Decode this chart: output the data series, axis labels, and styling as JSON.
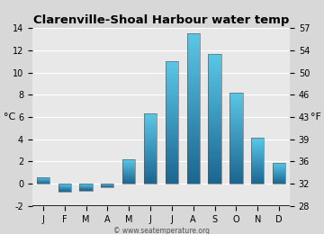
{
  "title": "Clarenville-Shoal Harbour water temp",
  "months": [
    "J",
    "F",
    "M",
    "A",
    "M",
    "J",
    "J",
    "A",
    "S",
    "O",
    "N",
    "D"
  ],
  "values_c": [
    0.6,
    -0.7,
    -0.6,
    -0.3,
    2.2,
    6.3,
    11.0,
    13.5,
    11.7,
    8.2,
    4.1,
    1.9
  ],
  "ylabel_left": "°C",
  "ylabel_right": "°F",
  "ylim_c": [
    -2,
    14
  ],
  "yticks_c": [
    -2,
    0,
    2,
    4,
    6,
    8,
    10,
    12,
    14
  ],
  "yticks_f": [
    28,
    32,
    36,
    39,
    43,
    46,
    50,
    54,
    57
  ],
  "bg_color": "#d8d8d8",
  "plot_bg": "#e8e8e8",
  "bar_top_color": "#5bc8e8",
  "bar_bottom_color": "#1a6690",
  "watermark": "© www.seatemperature.org",
  "title_fontsize": 9.5,
  "tick_fontsize": 7,
  "label_fontsize": 8
}
